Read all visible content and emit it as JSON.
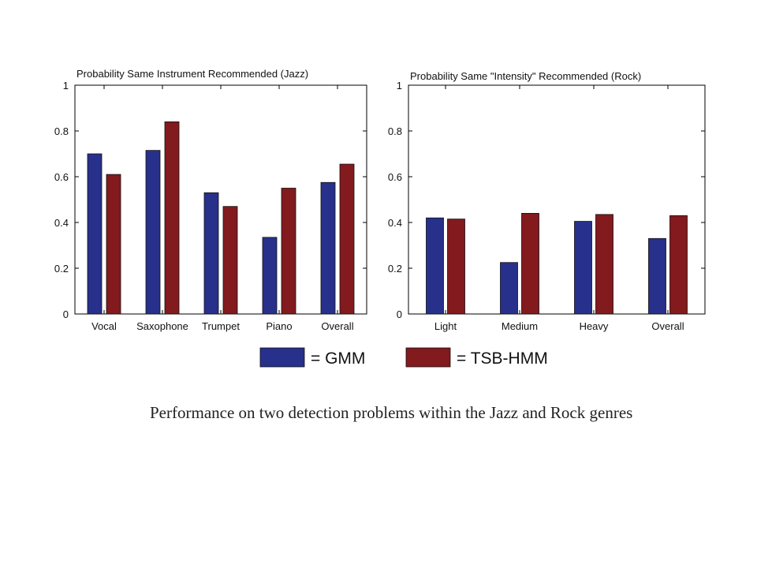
{
  "chart_data": [
    {
      "type": "bar",
      "title": "Probability Same Instrument Recommended (Jazz)",
      "categories": [
        "Vocal",
        "Saxophone",
        "Trumpet",
        "Piano",
        "Overall"
      ],
      "series": [
        {
          "name": "GMM",
          "values": [
            0.7,
            0.715,
            0.53,
            0.335,
            0.575
          ]
        },
        {
          "name": "TSB-HMM",
          "values": [
            0.61,
            0.84,
            0.47,
            0.55,
            0.655
          ]
        }
      ],
      "ylim": [
        0,
        1
      ],
      "yticks": [
        "0",
        "0.2",
        "0.4",
        "0.6",
        "0.8",
        "1"
      ],
      "grid": false
    },
    {
      "type": "bar",
      "title": "Probability Same \"Intensity\" Recommended  (Rock)",
      "categories": [
        "Light",
        "Medium",
        "Heavy",
        "Overall"
      ],
      "series": [
        {
          "name": "GMM",
          "values": [
            0.42,
            0.225,
            0.405,
            0.33
          ]
        },
        {
          "name": "TSB-HMM",
          "values": [
            0.415,
            0.44,
            0.435,
            0.43
          ]
        }
      ],
      "ylim": [
        0,
        1
      ],
      "yticks": [
        "0",
        "0.2",
        "0.4",
        "0.6",
        "0.8",
        "1"
      ],
      "grid": false
    }
  ],
  "legend": {
    "items": [
      {
        "label": "= GMM",
        "color": "#27308a"
      },
      {
        "label": "= TSB-HMM",
        "color": "#821a1e"
      }
    ]
  },
  "colors": {
    "gmm": "#27308a",
    "tsb_hmm": "#821a1e"
  },
  "caption": "Performance on two detection problems within the Jazz and Rock genres"
}
